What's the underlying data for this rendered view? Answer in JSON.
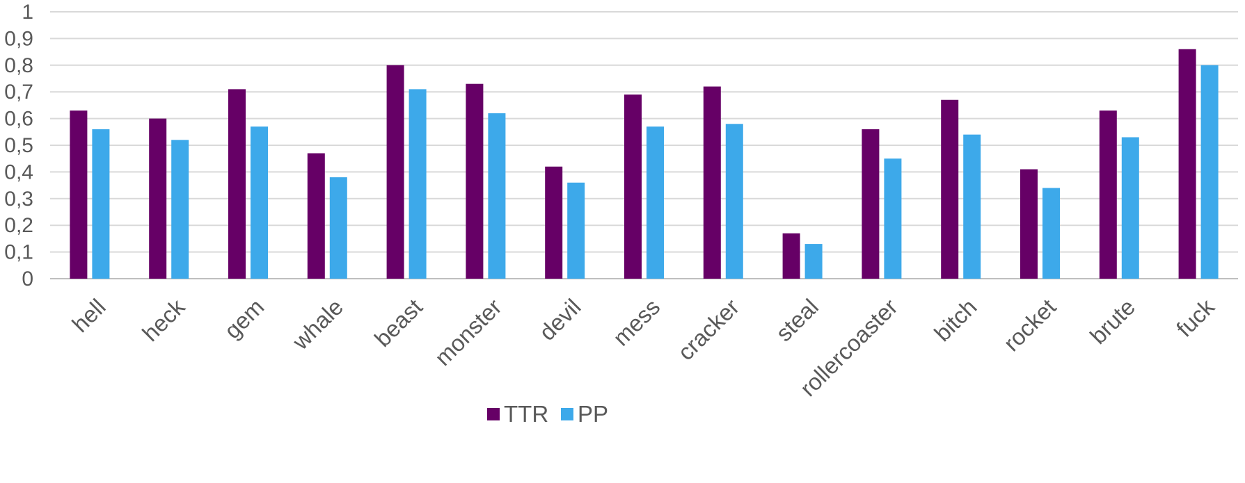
{
  "chart_data": {
    "type": "bar",
    "categories": [
      "hell",
      "heck",
      "gem",
      "whale",
      "beast",
      "monster",
      "devil",
      "mess",
      "cracker",
      "steal",
      "rollercoaster",
      "bitch",
      "rocket",
      "brute",
      "fuck"
    ],
    "series": [
      {
        "name": "TTR",
        "color": "#660066",
        "values": [
          0.63,
          0.6,
          0.71,
          0.47,
          0.8,
          0.73,
          0.42,
          0.69,
          0.72,
          0.17,
          0.56,
          0.67,
          0.41,
          0.63,
          0.86
        ]
      },
      {
        "name": "PP",
        "color": "#3DA9EA",
        "values": [
          0.56,
          0.52,
          0.57,
          0.38,
          0.71,
          0.62,
          0.36,
          0.57,
          0.58,
          0.13,
          0.45,
          0.54,
          0.34,
          0.53,
          0.8
        ]
      }
    ],
    "ylim": [
      0,
      1
    ],
    "yticks": [
      "0",
      "0,1",
      "0,2",
      "0,3",
      "0,4",
      "0,5",
      "0,6",
      "0,7",
      "0,8",
      "0,9",
      "1"
    ],
    "grid": true,
    "legend": "bottom-center",
    "gridColor": "#d9d9d9",
    "textColor": "#595959"
  }
}
